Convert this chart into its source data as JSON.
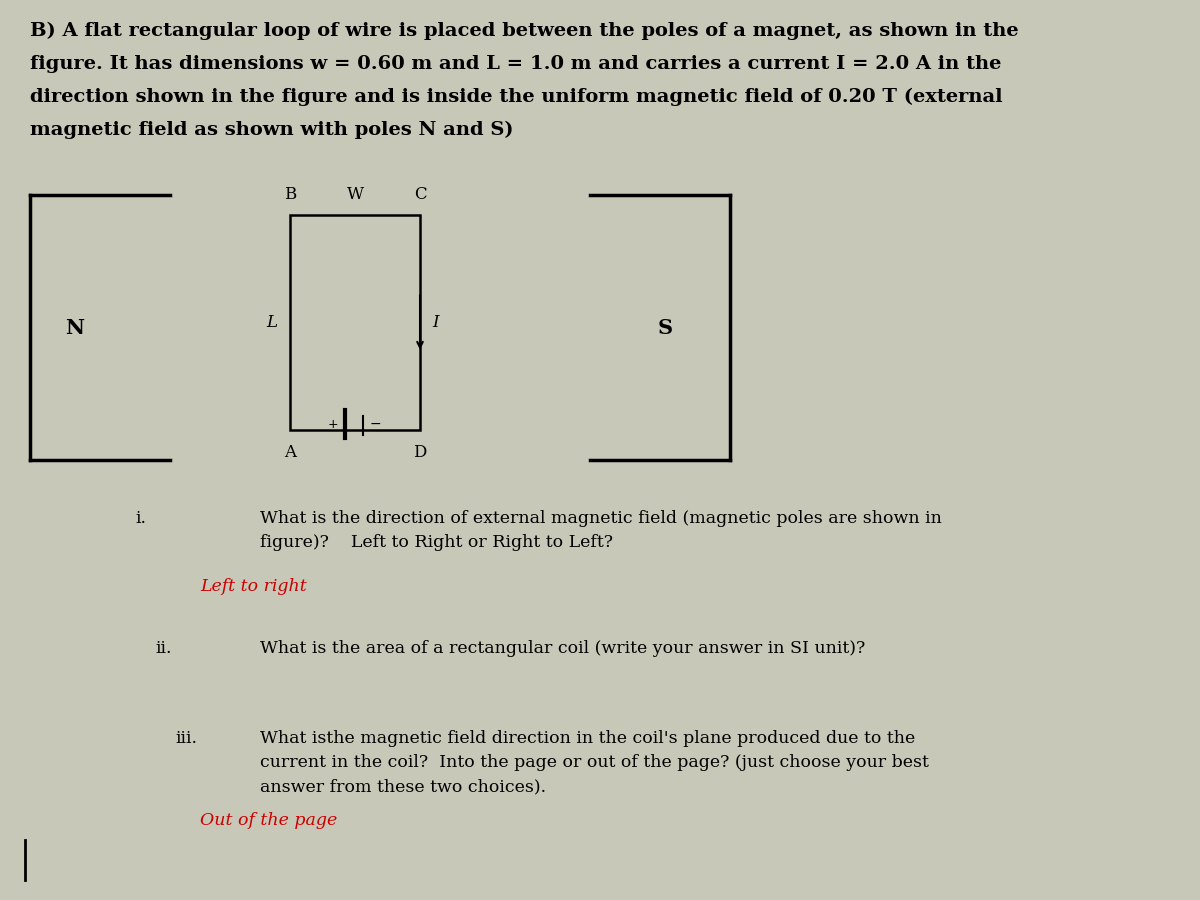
{
  "background_color": "#c8c8b8",
  "title_text_line1": "B) A flat rectangular loop of wire is placed between the poles of a magnet, as shown in the",
  "title_text_line2": "figure. It has dimensions w = 0.60 m and L = 1.0 m and carries a current I = 2.0 A in the",
  "title_text_line3": "direction shown in the figure and is inside the uniform magnetic field of 0.20 T (external",
  "title_text_line4": "magnetic field as shown with poles N and S)",
  "title_fontsize": 14,
  "fig_width": 12,
  "fig_height": 9,
  "answer_color": "#cc0000",
  "q1_label": "i.",
  "q1_text_line1": "What is the direction of external magnetic field (magnetic poles are shown in",
  "q1_text_line2": "figure)?    Left to Right or Right to Left?",
  "q1_answer": "Left to right",
  "q2_label": "ii.",
  "q2_text": "What is the area of a rectangular coil (write your answer in SI unit)?",
  "q3_label": "iii.",
  "q3_text_line1": "What is​the magnetic field direction in the coil's plane produced due to the",
  "q3_text_line2": "current in the coil?  Into the page or out of the page? (just choose your best",
  "q3_text_line3": "answer from these two choices).",
  "q3_answer": "Out of the page"
}
